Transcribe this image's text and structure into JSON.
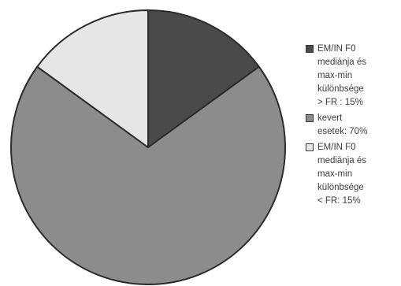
{
  "chart_data": {
    "type": "pie",
    "slices": [
      {
        "label": "EM/IN F0\nmediánja és\nmax-min\nkülönbsége\n> FR : 15%",
        "value": 15,
        "color": "#4a4a4a"
      },
      {
        "label": "kevert\nesetek: 70%",
        "value": 70,
        "color": "#8c8c8c"
      },
      {
        "label": "EM/IN F0\nmediánja és\nmax-min\nkülönbsége\n< FR: 15%",
        "value": 15,
        "color": "#e6e6e6"
      }
    ],
    "start_angle_deg": 0,
    "direction": "clockwise",
    "edge_color": "#2b2b2b",
    "legend_position": "right"
  }
}
